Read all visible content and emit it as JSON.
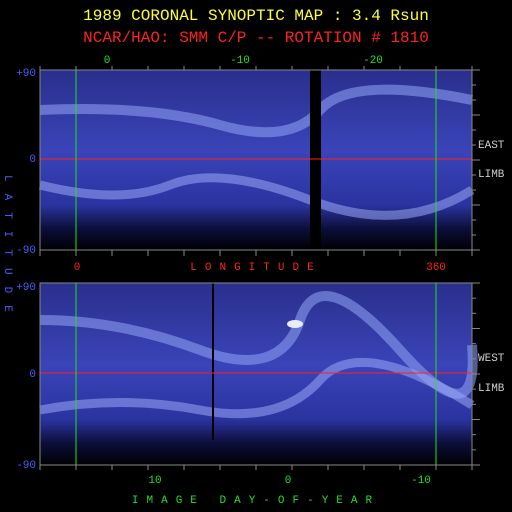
{
  "header": {
    "title": "1989 CORONAL SYNOPTIC MAP : 3.4 Rsun",
    "subtitle": "NCAR/HAO: SMM C/P -- ROTATION # 1810"
  },
  "top_panel": {
    "top_labels": [
      "0",
      "-10",
      "-20"
    ],
    "lat_labels": [
      "+90",
      "0",
      "-90"
    ],
    "side_labels": [
      "EAST",
      "LIMB"
    ],
    "bottom_labels": [
      "0",
      "360"
    ],
    "axis_title": "LONGITUDE"
  },
  "left_title": "LATITUDE",
  "bottom_panel": {
    "lat_labels": [
      "+90",
      "0",
      "-90"
    ],
    "side_labels": [
      "WEST",
      "LIMB"
    ],
    "bottom_labels": [
      "10",
      "0",
      "-10"
    ],
    "axis_title": "IMAGE DAY-OF-YEAR"
  }
}
